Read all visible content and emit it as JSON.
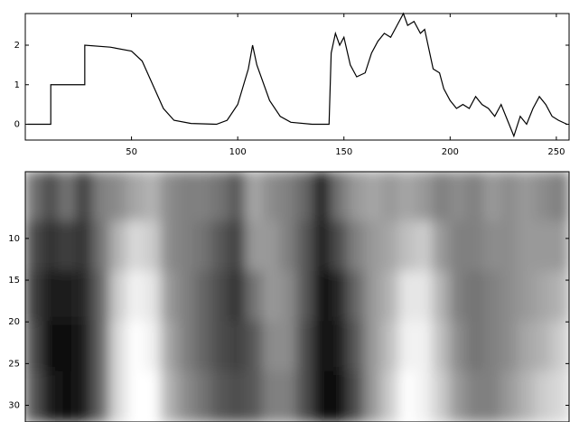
{
  "chart_data": [
    {
      "type": "line",
      "x": [
        1,
        12,
        12,
        28,
        28,
        40,
        50,
        55,
        60,
        65,
        70,
        78,
        90,
        95,
        100,
        105,
        107,
        109,
        115,
        120,
        125,
        135,
        143,
        144,
        146,
        148,
        150,
        153,
        156,
        160,
        163,
        166,
        169,
        172,
        175,
        178,
        180,
        183,
        186,
        188,
        190,
        192,
        195,
        197,
        200,
        203,
        206,
        209,
        212,
        215,
        218,
        221,
        224,
        227,
        230,
        233,
        236,
        239,
        242,
        245,
        248,
        251,
        255
      ],
      "values": [
        0,
        0,
        1,
        1,
        2,
        1.95,
        1.85,
        1.6,
        1,
        0.4,
        0.1,
        0.02,
        0,
        0.1,
        0.5,
        1.4,
        2,
        1.5,
        0.6,
        0.2,
        0.05,
        0,
        0,
        1.8,
        2.3,
        2,
        2.2,
        1.5,
        1.2,
        1.3,
        1.8,
        2.1,
        2.3,
        2.2,
        2.5,
        2.8,
        2.5,
        2.6,
        2.3,
        2.4,
        1.9,
        1.4,
        1.3,
        0.9,
        0.6,
        0.4,
        0.5,
        0.4,
        0.7,
        0.5,
        0.4,
        0.2,
        0.5,
        0.1,
        -0.3,
        0.2,
        0,
        0.4,
        0.7,
        0.5,
        0.2,
        0.1,
        0
      ],
      "color": "#000000",
      "xlim": [
        0,
        256
      ],
      "ylim": [
        -0.4,
        2.8
      ],
      "xticks": [
        50,
        100,
        150,
        200,
        250
      ],
      "yticks": [
        0,
        1,
        2
      ]
    },
    {
      "type": "heatmap",
      "x": [
        4,
        12,
        20,
        28,
        36,
        44,
        52,
        60,
        68,
        76,
        84,
        92,
        100,
        108,
        116,
        124,
        132,
        140,
        148,
        156,
        164,
        172,
        180,
        188,
        196,
        204,
        212,
        220,
        228,
        236,
        244,
        252
      ],
      "y": [
        5,
        11,
        17,
        23,
        29
      ],
      "z": [
        [
          0.45,
          0.3,
          0.45,
          0.25,
          0.5,
          0.55,
          0.65,
          0.7,
          0.55,
          0.5,
          0.5,
          0.45,
          0.35,
          0.65,
          0.55,
          0.5,
          0.4,
          0.1,
          0.45,
          0.6,
          0.65,
          0.6,
          0.65,
          0.6,
          0.5,
          0.55,
          0.5,
          0.6,
          0.55,
          0.6,
          0.55,
          0.5
        ],
        [
          0.3,
          0.2,
          0.25,
          0.2,
          0.45,
          0.7,
          0.85,
          0.8,
          0.55,
          0.5,
          0.45,
          0.35,
          0.25,
          0.6,
          0.6,
          0.5,
          0.35,
          0.1,
          0.3,
          0.5,
          0.6,
          0.65,
          0.75,
          0.8,
          0.6,
          0.5,
          0.5,
          0.55,
          0.55,
          0.6,
          0.6,
          0.6
        ],
        [
          0.25,
          0.1,
          0.1,
          0.15,
          0.4,
          0.8,
          0.95,
          0.9,
          0.6,
          0.5,
          0.4,
          0.3,
          0.2,
          0.45,
          0.6,
          0.55,
          0.35,
          0.05,
          0.15,
          0.4,
          0.6,
          0.7,
          0.9,
          0.9,
          0.7,
          0.5,
          0.45,
          0.5,
          0.55,
          0.6,
          0.65,
          0.7
        ],
        [
          0.3,
          0.05,
          0.05,
          0.1,
          0.4,
          0.85,
          1,
          0.95,
          0.65,
          0.5,
          0.4,
          0.3,
          0.25,
          0.35,
          0.55,
          0.55,
          0.3,
          0.05,
          0.1,
          0.35,
          0.6,
          0.75,
          0.95,
          0.95,
          0.75,
          0.55,
          0.45,
          0.5,
          0.55,
          0.65,
          0.7,
          0.8
        ],
        [
          0.35,
          0.1,
          0.05,
          0.1,
          0.4,
          0.85,
          1,
          1,
          0.7,
          0.55,
          0.45,
          0.35,
          0.3,
          0.35,
          0.5,
          0.5,
          0.3,
          0.05,
          0.05,
          0.3,
          0.6,
          0.8,
          1,
          0.95,
          0.8,
          0.6,
          0.5,
          0.5,
          0.6,
          0.7,
          0.8,
          0.85
        ]
      ],
      "colormap": "gray",
      "xlim": [
        0,
        256
      ],
      "ylim": [
        32,
        2
      ],
      "yticks": [
        10,
        15,
        20,
        25,
        30
      ]
    }
  ]
}
